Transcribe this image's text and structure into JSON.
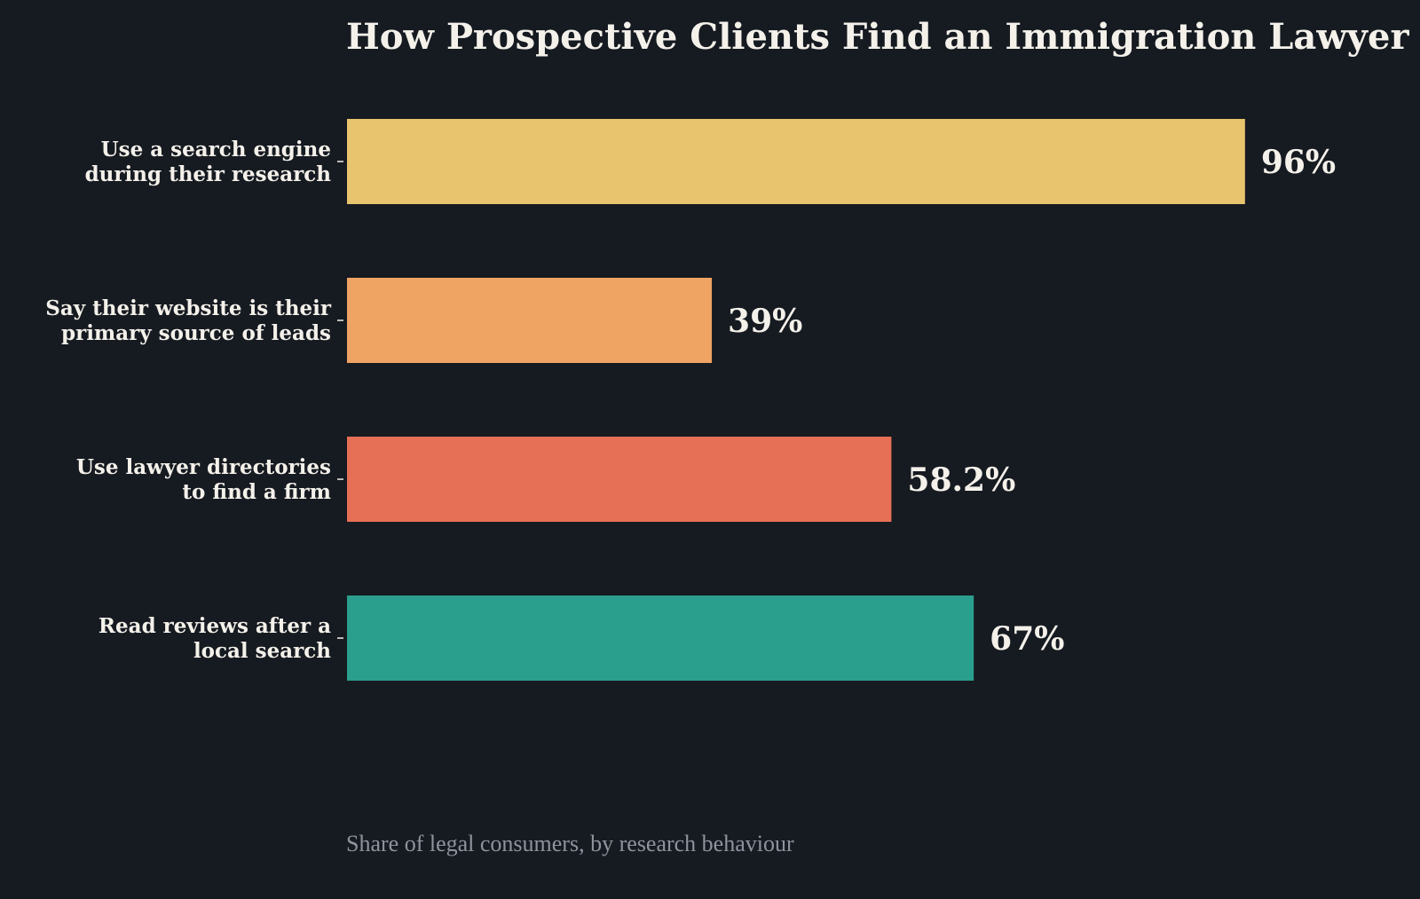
{
  "chart_data": {
    "type": "bar",
    "orientation": "horizontal",
    "title": "How Prospective Clients Find an Immigration Lawyer",
    "caption": "Share of legal consumers, by research behaviour",
    "categories": [
      [
        "Use a search engine",
        "during their research"
      ],
      [
        "Say their website is their",
        "primary source of leads"
      ],
      [
        "Use lawyer directories",
        "to find a firm"
      ],
      [
        "Read reviews after a",
        "local search"
      ]
    ],
    "values": [
      96,
      39,
      58.2,
      67
    ],
    "value_labels": [
      "96%",
      "39%",
      "58.2%",
      "67%"
    ],
    "colors": [
      "#e8c46e",
      "#f0a464",
      "#e57055",
      "#2a9f8d"
    ],
    "xlim": [
      0,
      100
    ],
    "grid": false,
    "legend": false
  },
  "theme": {
    "background": "#161a21",
    "text": "#f4f1ea",
    "muted": "#8e949e"
  }
}
